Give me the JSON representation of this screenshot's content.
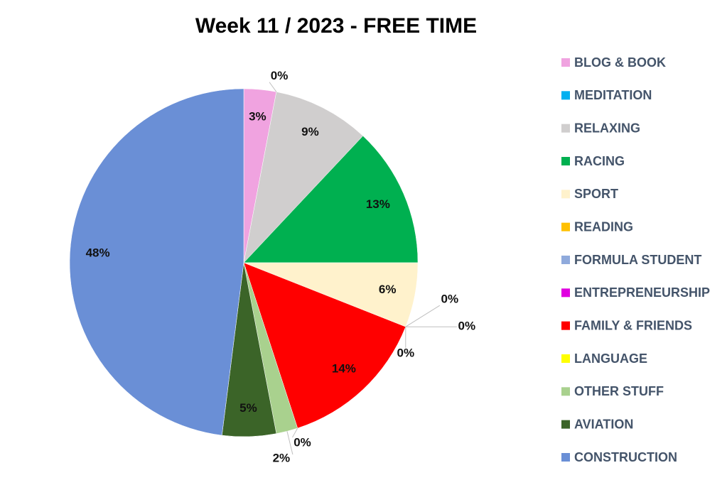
{
  "chart_data": {
    "type": "pie",
    "title": "Week 11 / 2023 - FREE TIME",
    "categories": [
      "BLOG & BOOK",
      "MEDITATION",
      "RELAXING",
      "RACING",
      "SPORT",
      "READING",
      "FORMULA STUDENT",
      "ENTREPRENEURSHIP",
      "FAMILY & FRIENDS",
      "LANGUAGE",
      "OTHER STUFF",
      "AVIATION",
      "CONSTRUCTION"
    ],
    "values": [
      3,
      0,
      9,
      13,
      6,
      0,
      0,
      0,
      14,
      0,
      2,
      5,
      48
    ],
    "value_labels": [
      "3%",
      "0%",
      "9%",
      "13%",
      "6%",
      "0%",
      "0%",
      "0%",
      "14%",
      "0%",
      "2%",
      "5%",
      "48%"
    ],
    "colors": [
      "#f0a3e0",
      "#00b0f0",
      "#d0cece",
      "#00b050",
      "#fff2cc",
      "#ffc000",
      "#8faadc",
      "#e000e0",
      "#ff0000",
      "#ffff00",
      "#a9d18e",
      "#3b6428",
      "#6a8fd6"
    ],
    "legend": "right"
  }
}
